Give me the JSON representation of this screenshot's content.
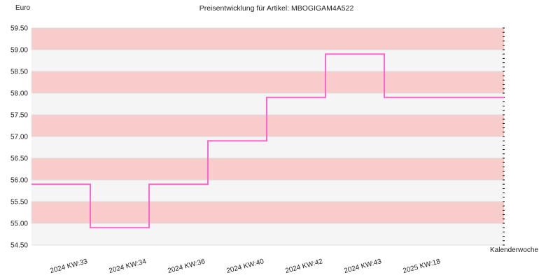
{
  "chart_data": {
    "type": "line",
    "step": true,
    "title": "Preisentwicklung für Artikel: MBOGIGAM4A522",
    "ylabel": "Euro",
    "xlabel": "Kalenderwoche",
    "ylim": [
      54.5,
      59.5
    ],
    "ytick_step": 0.5,
    "grid": true,
    "band_colors": [
      "#f9cccc",
      "#f5f5f5"
    ],
    "line_color": "#ff66cc",
    "categories": [
      "2024 KW:33",
      "2024 KW:34",
      "2024 KW:36",
      "2024 KW:40",
      "2024 KW:42",
      "2024 KW:43",
      "2025 KW:18"
    ],
    "series": [
      {
        "values": [
          55.9,
          54.9,
          55.9,
          56.9,
          57.9,
          58.9,
          57.9
        ]
      }
    ]
  }
}
